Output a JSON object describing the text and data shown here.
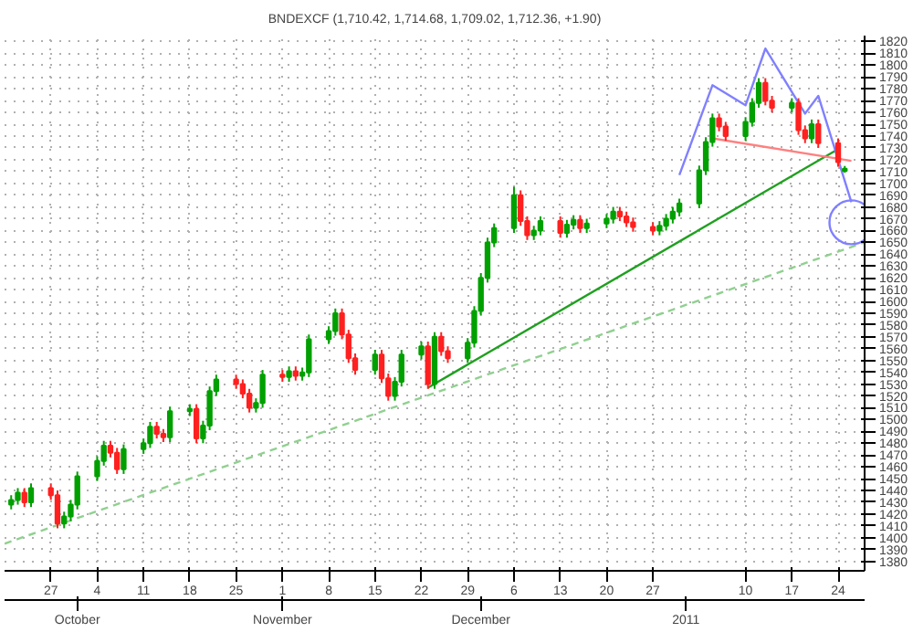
{
  "chart_data": {
    "type": "candlestick",
    "title": "BNDEXCF (1,710.42, 1,714.68, 1,709.02, 1,712.36, +1.90)",
    "xlim": [
      "2010-09-20",
      "2011-01-28"
    ],
    "xticks": [
      {
        "value": "2010-09-27",
        "label": "27"
      },
      {
        "value": "2010-10-04",
        "label": "4"
      },
      {
        "value": "2010-10-11",
        "label": "11"
      },
      {
        "value": "2010-10-18",
        "label": "18"
      },
      {
        "value": "2010-10-25",
        "label": "25"
      },
      {
        "value": "2010-11-01",
        "label": "1"
      },
      {
        "value": "2010-11-08",
        "label": "8"
      },
      {
        "value": "2010-11-15",
        "label": "15"
      },
      {
        "value": "2010-11-22",
        "label": "22"
      },
      {
        "value": "2010-11-29",
        "label": "29"
      },
      {
        "value": "2010-12-06",
        "label": "6"
      },
      {
        "value": "2010-12-13",
        "label": "13"
      },
      {
        "value": "2010-12-20",
        "label": "20"
      },
      {
        "value": "2010-12-27",
        "label": "27"
      },
      {
        "value": "2011-01-10",
        "label": "10"
      },
      {
        "value": "2011-01-17",
        "label": "17"
      },
      {
        "value": "2011-01-24",
        "label": "24"
      }
    ],
    "x2lim": [
      "2010-09-20",
      "2011-01-28"
    ],
    "x2ticks": [
      {
        "value": "2010-10-01",
        "label": "October"
      },
      {
        "value": "2010-11-01",
        "label": "November"
      },
      {
        "value": "2010-12-01",
        "label": "December"
      },
      {
        "value": "2011-01-01",
        "label": "2011"
      }
    ],
    "ylim": [
      1372,
      1825
    ],
    "yticks": [
      1380,
      1390,
      1400,
      1410,
      1420,
      1430,
      1440,
      1450,
      1460,
      1470,
      1480,
      1490,
      1500,
      1510,
      1520,
      1530,
      1540,
      1550,
      1560,
      1570,
      1580,
      1590,
      1600,
      1610,
      1620,
      1630,
      1640,
      1650,
      1660,
      1670,
      1680,
      1690,
      1700,
      1710,
      1720,
      1730,
      1740,
      1750,
      1760,
      1770,
      1780,
      1790,
      1800,
      1810,
      1820
    ],
    "grid": true,
    "series": [
      {
        "type": "line",
        "color": "#90d090",
        "line_style": "dashed",
        "x": [
          "2010-09-20",
          "2011-01-28"
        ],
        "values": [
          1395,
          1650
        ]
      },
      {
        "type": "line",
        "color": "#20a020",
        "line_style": "solid",
        "x": [
          "2010-11-23",
          "2011-01-24"
        ],
        "values": [
          1527,
          1729
        ]
      },
      {
        "type": "line",
        "color": "#ff8080",
        "line_style": "solid",
        "x": [
          "2011-01-05",
          "2011-01-26"
        ],
        "values": [
          1738,
          1719
        ]
      },
      {
        "type": "line",
        "color": "#8080ff",
        "line_style": "solid",
        "x": [
          "2010-12-31",
          "2011-01-05",
          "2011-01-10",
          "2011-01-13",
          "2011-01-19",
          "2011-01-21",
          "2011-01-26"
        ],
        "values": [
          1707,
          1783,
          1766,
          1814,
          1759,
          1774,
          1684
        ]
      },
      {
        "type": "scatter",
        "color": "#8080ff",
        "marker": "circle",
        "x": [
          "2011-01-26"
        ],
        "values": [
          1667
        ]
      },
      {
        "x": [
          "2010-09-21",
          "2010-09-22",
          "2010-09-23",
          "2010-09-24",
          "2010-09-27",
          "2010-09-28",
          "2010-09-29",
          "2010-09-30",
          "2010-10-01",
          "2010-10-04",
          "2010-10-05",
          "2010-10-06",
          "2010-10-07",
          "2010-10-08",
          "2010-10-11",
          "2010-10-12",
          "2010-10-13",
          "2010-10-14",
          "2010-10-15",
          "2010-10-18",
          "2010-10-19",
          "2010-10-20",
          "2010-10-21",
          "2010-10-22",
          "2010-10-25",
          "2010-10-26",
          "2010-10-27",
          "2010-10-28",
          "2010-10-29",
          "2010-11-01",
          "2010-11-02",
          "2010-11-03",
          "2010-11-04",
          "2010-11-05",
          "2010-11-08",
          "2010-11-09",
          "2010-11-10",
          "2010-11-11",
          "2010-11-12",
          "2010-11-15",
          "2010-11-16",
          "2010-11-17",
          "2010-11-18",
          "2010-11-19",
          "2010-11-22",
          "2010-11-23",
          "2010-11-24",
          "2010-11-25",
          "2010-11-26",
          "2010-11-29",
          "2010-11-30",
          "2010-12-01",
          "2010-12-02",
          "2010-12-03",
          "2010-12-06",
          "2010-12-07",
          "2010-12-08",
          "2010-12-09",
          "2010-12-10",
          "2010-12-13",
          "2010-12-14",
          "2010-12-15",
          "2010-12-16",
          "2010-12-17",
          "2010-12-20",
          "2010-12-21",
          "2010-12-22",
          "2010-12-23",
          "2010-12-24",
          "2010-12-27",
          "2010-12-28",
          "2010-12-29",
          "2010-12-30",
          "2010-12-31",
          "2011-01-03",
          "2011-01-04",
          "2011-01-05",
          "2011-01-06",
          "2011-01-07",
          "2011-01-10",
          "2011-01-11",
          "2011-01-12",
          "2011-01-13",
          "2011-01-14",
          "2011-01-17",
          "2011-01-18",
          "2011-01-19",
          "2011-01-20",
          "2011-01-21",
          "2011-01-24",
          "2011-01-25"
        ],
        "ohlc": [
          [
            1428,
            1436,
            1424,
            1432
          ],
          [
            1432,
            1442,
            1428,
            1438
          ],
          [
            1438,
            1442,
            1426,
            1430
          ],
          [
            1430,
            1446,
            1426,
            1442
          ],
          [
            1442,
            1446,
            1432,
            1436
          ],
          [
            1436,
            1440,
            1408,
            1412
          ],
          [
            1412,
            1422,
            1408,
            1418
          ],
          [
            1418,
            1432,
            1414,
            1428
          ],
          [
            1428,
            1456,
            1424,
            1452
          ],
          [
            1452,
            1469,
            1448,
            1465
          ],
          [
            1465,
            1482,
            1461,
            1478
          ],
          [
            1478,
            1482,
            1468,
            1472
          ],
          [
            1472,
            1476,
            1454,
            1458
          ],
          [
            1458,
            1479,
            1454,
            1475
          ],
          [
            1475,
            1484,
            1471,
            1480
          ],
          [
            1480,
            1498,
            1476,
            1494
          ],
          [
            1494,
            1498,
            1484,
            1488
          ],
          [
            1488,
            1492,
            1481,
            1485
          ],
          [
            1485,
            1511,
            1481,
            1507
          ],
          [
            1507,
            1513,
            1503,
            1509
          ],
          [
            1509,
            1513,
            1480,
            1484
          ],
          [
            1484,
            1499,
            1480,
            1495
          ],
          [
            1495,
            1528,
            1491,
            1524
          ],
          [
            1524,
            1538,
            1520,
            1534
          ],
          [
            1534,
            1538,
            1526,
            1530
          ],
          [
            1530,
            1534,
            1518,
            1522
          ],
          [
            1522,
            1526,
            1506,
            1510
          ],
          [
            1510,
            1518,
            1506,
            1514
          ],
          [
            1514,
            1542,
            1510,
            1538
          ],
          [
            1538,
            1542,
            1532,
            1536
          ],
          [
            1536,
            1545,
            1532,
            1541
          ],
          [
            1541,
            1545,
            1533,
            1537
          ],
          [
            1537,
            1544,
            1533,
            1540
          ],
          [
            1540,
            1572,
            1536,
            1568
          ],
          [
            1568,
            1579,
            1564,
            1575
          ],
          [
            1575,
            1594,
            1571,
            1590
          ],
          [
            1590,
            1594,
            1568,
            1572
          ],
          [
            1572,
            1576,
            1548,
            1552
          ],
          [
            1552,
            1556,
            1538,
            1542
          ],
          [
            1542,
            1559,
            1538,
            1555
          ],
          [
            1555,
            1559,
            1531,
            1535
          ],
          [
            1535,
            1539,
            1516,
            1520
          ],
          [
            1520,
            1536,
            1516,
            1532
          ],
          [
            1532,
            1559,
            1528,
            1555
          ],
          [
            1555,
            1566,
            1551,
            1562
          ],
          [
            1562,
            1566,
            1526,
            1530
          ],
          [
            1530,
            1574,
            1526,
            1570
          ],
          [
            1570,
            1574,
            1554,
            1558
          ],
          [
            1558,
            1562,
            1548,
            1552
          ],
          [
            1552,
            1569,
            1548,
            1565
          ],
          [
            1565,
            1596,
            1561,
            1592
          ],
          [
            1592,
            1624,
            1588,
            1620
          ],
          [
            1620,
            1654,
            1616,
            1650
          ],
          [
            1650,
            1666,
            1646,
            1662
          ],
          [
            1662,
            1697,
            1658,
            1690
          ],
          [
            1690,
            1694,
            1664,
            1668
          ],
          [
            1668,
            1672,
            1652,
            1656
          ],
          [
            1656,
            1664,
            1652,
            1660
          ],
          [
            1660,
            1672,
            1656,
            1668
          ],
          [
            1668,
            1672,
            1654,
            1658
          ],
          [
            1658,
            1669,
            1654,
            1665
          ],
          [
            1665,
            1673,
            1661,
            1669
          ],
          [
            1669,
            1673,
            1658,
            1662
          ],
          [
            1662,
            1670,
            1658,
            1666
          ],
          [
            1666,
            1674,
            1662,
            1670
          ],
          [
            1670,
            1680,
            1666,
            1676
          ],
          [
            1676,
            1680,
            1668,
            1672
          ],
          [
            1672,
            1676,
            1663,
            1667
          ],
          [
            1667,
            1671,
            1659,
            1663
          ],
          [
            1663,
            1667,
            1656,
            1660
          ],
          [
            1660,
            1668,
            1656,
            1664
          ],
          [
            1664,
            1674,
            1660,
            1670
          ],
          [
            1670,
            1680,
            1666,
            1676
          ],
          [
            1676,
            1687,
            1672,
            1683
          ],
          [
            1683,
            1715,
            1679,
            1711
          ],
          [
            1711,
            1739,
            1707,
            1735
          ],
          [
            1735,
            1759,
            1731,
            1755
          ],
          [
            1755,
            1759,
            1744,
            1748
          ],
          [
            1748,
            1752,
            1736,
            1740
          ],
          [
            1740,
            1756,
            1736,
            1752
          ],
          [
            1752,
            1772,
            1748,
            1768
          ],
          [
            1768,
            1789,
            1764,
            1785
          ],
          [
            1785,
            1789,
            1766,
            1770
          ],
          [
            1770,
            1774,
            1760,
            1764
          ],
          [
            1764,
            1772,
            1760,
            1768
          ],
          [
            1768,
            1772,
            1741,
            1745
          ],
          [
            1745,
            1749,
            1734,
            1738
          ],
          [
            1738,
            1754,
            1734,
            1750
          ],
          [
            1750,
            1754,
            1730,
            1734
          ],
          [
            1734,
            1738,
            1714,
            1718
          ],
          [
            1710.42,
            1714.68,
            1709.02,
            1712.36
          ]
        ],
        "colors": [
          "#00a000",
          "#00a000",
          "#ff2020",
          "#00a000",
          "#ff2020",
          "#ff2020",
          "#00a000",
          "#00a000",
          "#00a000",
          "#00a000",
          "#00a000",
          "#ff2020",
          "#ff2020",
          "#00a000",
          "#00a000",
          "#00a000",
          "#ff2020",
          "#ff2020",
          "#00a000",
          "#00a000",
          "#ff2020",
          "#00a000",
          "#00a000",
          "#00a000",
          "#ff2020",
          "#ff2020",
          "#ff2020",
          "#00a000",
          "#00a000",
          "#ff2020",
          "#00a000",
          "#ff2020",
          "#00a000",
          "#00a000",
          "#00a000",
          "#00a000",
          "#ff2020",
          "#ff2020",
          "#ff2020",
          "#00a000",
          "#ff2020",
          "#ff2020",
          "#00a000",
          "#00a000",
          "#00a000",
          "#ff2020",
          "#00a000",
          "#ff2020",
          "#ff2020",
          "#00a000",
          "#00a000",
          "#00a000",
          "#00a000",
          "#00a000",
          "#00a000",
          "#ff2020",
          "#ff2020",
          "#00a000",
          "#00a000",
          "#ff2020",
          "#00a000",
          "#00a000",
          "#ff2020",
          "#00a000",
          "#00a000",
          "#00a000",
          "#ff2020",
          "#ff2020",
          "#ff2020",
          "#ff2020",
          "#00a000",
          "#00a000",
          "#00a000",
          "#00a000",
          "#00a000",
          "#00a000",
          "#00a000",
          "#ff2020",
          "#ff2020",
          "#00a000",
          "#00a000",
          "#00a000",
          "#ff2020",
          "#ff2020",
          "#00a000",
          "#ff2020",
          "#ff2020",
          "#00a000",
          "#ff2020",
          "#ff2020",
          "#00a000"
        ]
      }
    ]
  }
}
